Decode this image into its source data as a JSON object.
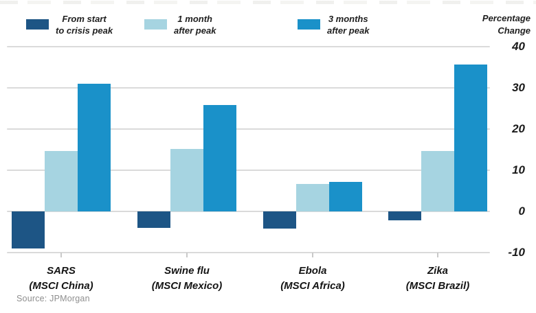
{
  "chart_data": {
    "type": "bar",
    "title": "",
    "categories": [
      "SARS\n(MSCI China)",
      "Swine flu\n(MSCI Mexico)",
      "Ebola\n(MSCI Africa)",
      "Zika\n(MSCI Brazil)"
    ],
    "series": [
      {
        "name": "From start\nto crisis peak",
        "color": "#1d5585",
        "values": [
          -9.0,
          -4.0,
          -4.2,
          -2.2
        ]
      },
      {
        "name": "1 month\nafter peak",
        "color": "#a6d4e1",
        "values": [
          14.7,
          15.2,
          6.7,
          14.7
        ]
      },
      {
        "name": "3 months\nafter peak",
        "color": "#1a91c9",
        "values": [
          31.0,
          25.8,
          7.2,
          35.7
        ]
      }
    ],
    "ylabel": "Percentage\nChange",
    "ylim": [
      -10,
      40
    ],
    "yticks": [
      40,
      30,
      20,
      10,
      0,
      -10
    ],
    "grid": "horizontal",
    "legend_position": "top"
  },
  "source_note": "Source: JPMorgan",
  "colors": {
    "gridline": "#dadada",
    "text": "#1b1b1b",
    "source_text": "#8e8e8e"
  }
}
